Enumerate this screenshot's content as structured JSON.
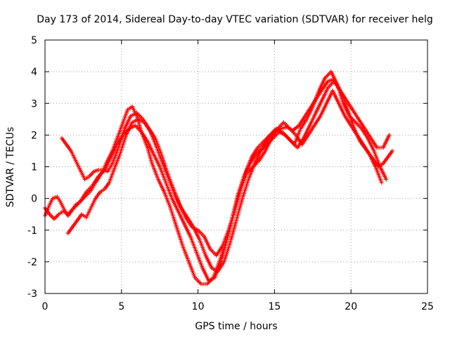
{
  "chart_data": {
    "type": "scatter",
    "title": "Day 173 of 2014, Sidereal Day-to-day VTEC variation (SDTVAR) for receiver helg",
    "xlabel": "GPS time / hours",
    "ylabel": "SDTVAR / TECUs",
    "xlim": [
      0,
      25
    ],
    "ylim": [
      -3,
      5
    ],
    "xticks": [
      "0",
      "5",
      "10",
      "15",
      "20",
      "25"
    ],
    "yticks": [
      "-3",
      "-2",
      "-1",
      "0",
      "1",
      "2",
      "3",
      "4",
      "5"
    ],
    "grid": true,
    "legend": "none",
    "marker": "plus",
    "colors": {
      "series": "#ff0000",
      "axis": "#000000",
      "grid": "#a0a0a0"
    },
    "series": [
      {
        "x": [
          0.0,
          0.3,
          0.5,
          0.8,
          1.0,
          1.2,
          1.5,
          1.8,
          2.0,
          2.3,
          2.6,
          3.0,
          3.3,
          3.7,
          4.0,
          4.4,
          4.8,
          5.1,
          5.4,
          5.7,
          6.0,
          6.3,
          6.7,
          7.0,
          7.4,
          7.8,
          8.2,
          8.6,
          9.0,
          9.4,
          9.8,
          10.2,
          10.6,
          11.0,
          11.4,
          11.8,
          12.2,
          12.6,
          13.0,
          13.4,
          13.8,
          14.2,
          14.6,
          15.0,
          15.4,
          15.8,
          16.2,
          16.6,
          17.0,
          17.4,
          17.8,
          18.2,
          18.5,
          18.8,
          19.1,
          19.4,
          19.7,
          20.0,
          20.3,
          20.6,
          20.9,
          21.2,
          21.5,
          21.8,
          22.1,
          22.4,
          22.7
        ],
        "y": [
          -0.55,
          -0.2,
          0.0,
          0.05,
          -0.1,
          -0.3,
          -0.55,
          -0.35,
          -0.2,
          -0.1,
          0.05,
          0.25,
          0.5,
          0.8,
          1.1,
          1.5,
          2.0,
          2.4,
          2.8,
          2.9,
          2.6,
          2.1,
          1.6,
          1.1,
          0.6,
          0.2,
          -0.3,
          -0.9,
          -1.5,
          -2.0,
          -2.5,
          -2.7,
          -2.7,
          -2.5,
          -2.0,
          -1.4,
          -0.7,
          0.1,
          0.7,
          1.1,
          1.4,
          1.6,
          1.9,
          2.1,
          2.2,
          2.25,
          2.15,
          2.3,
          2.6,
          2.9,
          3.2,
          3.5,
          3.7,
          3.75,
          3.6,
          3.3,
          2.9,
          2.5,
          2.1,
          1.8,
          1.6,
          1.4,
          1.2,
          1.0,
          1.1,
          1.3,
          1.5
        ]
      },
      {
        "x": [
          0.0,
          0.3,
          0.6,
          0.9,
          1.2,
          1.5,
          1.9,
          2.3,
          2.7,
          3.1,
          3.5,
          3.9,
          4.3,
          4.7,
          5.1,
          5.5,
          5.9,
          6.3,
          6.7,
          7.1,
          7.5,
          7.9,
          8.3,
          8.7,
          9.1,
          9.5,
          9.9,
          10.3,
          10.7,
          11.1,
          11.5,
          11.9,
          12.3,
          12.7,
          13.1,
          13.5,
          13.9,
          14.3,
          14.7,
          15.1,
          15.5,
          15.9,
          16.3,
          16.7,
          17.1,
          17.5,
          17.9,
          18.3,
          18.7,
          19.1,
          19.5,
          19.9,
          20.3,
          20.7,
          21.1,
          21.5,
          21.9,
          22.3
        ],
        "y": [
          -0.3,
          -0.5,
          -0.65,
          -0.5,
          -0.4,
          -0.5,
          -0.3,
          -0.1,
          0.2,
          0.4,
          0.7,
          0.9,
          1.3,
          1.7,
          2.0,
          2.2,
          2.3,
          2.1,
          1.8,
          1.4,
          1.0,
          0.5,
          0.0,
          -0.4,
          -0.8,
          -1.2,
          -1.7,
          -2.2,
          -2.6,
          -2.5,
          -2.0,
          -1.3,
          -0.5,
          0.2,
          0.8,
          1.3,
          1.6,
          1.8,
          2.0,
          2.2,
          2.1,
          1.9,
          1.7,
          2.2,
          2.5,
          2.9,
          3.4,
          3.8,
          4.0,
          3.6,
          3.0,
          2.6,
          2.4,
          2.2,
          1.9,
          1.5,
          1.0,
          0.6
        ]
      },
      {
        "x": [
          1.1,
          1.4,
          1.7,
          2.0,
          2.3,
          2.6,
          2.9,
          3.2,
          3.5,
          3.8,
          4.1,
          4.4,
          4.8,
          5.2,
          5.6,
          6.0,
          6.4,
          6.8,
          7.2,
          7.6,
          8.0,
          8.4,
          8.8,
          9.2,
          9.6,
          10.0,
          10.4,
          10.8,
          11.2,
          11.6,
          12.0,
          12.4,
          12.8,
          13.2,
          13.6,
          14.0,
          14.4,
          14.8,
          15.2,
          15.6,
          16.0,
          16.4,
          16.8,
          17.2,
          17.6,
          18.0,
          18.4,
          18.8,
          19.2,
          19.6,
          20.0,
          20.4,
          20.8,
          21.2,
          21.6,
          22.0
        ],
        "y": [
          1.9,
          1.7,
          1.5,
          1.2,
          0.9,
          0.6,
          0.7,
          0.85,
          0.9,
          0.9,
          0.85,
          1.1,
          1.6,
          2.2,
          2.6,
          2.7,
          2.5,
          2.2,
          1.9,
          1.4,
          0.8,
          0.3,
          -0.2,
          -0.6,
          -0.9,
          -1.0,
          -1.2,
          -1.6,
          -1.8,
          -1.5,
          -1.0,
          -0.4,
          0.3,
          0.8,
          1.0,
          1.2,
          1.5,
          1.9,
          2.2,
          2.4,
          2.2,
          2.0,
          1.7,
          2.0,
          2.3,
          2.6,
          3.0,
          3.4,
          3.0,
          2.6,
          2.3,
          2.0,
          1.7,
          1.4,
          1.0,
          0.5
        ]
      },
      {
        "x": [
          1.5,
          1.8,
          2.1,
          2.4,
          2.7,
          3.0,
          3.3,
          3.6,
          3.9,
          4.2,
          4.5,
          4.9,
          5.3,
          5.7,
          6.1,
          6.5,
          6.9,
          7.3,
          7.7,
          8.1,
          8.5,
          8.9,
          9.3,
          9.7,
          10.1,
          10.5,
          10.9,
          11.3,
          11.7,
          12.1,
          12.5,
          12.9,
          13.3,
          13.7,
          14.1,
          14.5,
          14.9,
          15.3,
          15.7,
          16.1,
          16.5,
          16.9,
          17.3,
          17.7,
          18.1,
          18.5,
          18.9,
          19.3,
          19.7,
          20.1,
          20.5,
          20.9,
          21.3,
          21.7,
          22.1,
          22.5
        ],
        "y": [
          -1.1,
          -0.9,
          -0.7,
          -0.5,
          -0.6,
          -0.3,
          0.0,
          0.2,
          0.3,
          0.5,
          0.9,
          1.4,
          2.0,
          2.4,
          2.5,
          2.4,
          2.1,
          1.6,
          1.1,
          0.6,
          0.1,
          -0.3,
          -0.6,
          -0.9,
          -1.3,
          -1.8,
          -2.2,
          -2.3,
          -2.0,
          -1.4,
          -0.7,
          0.0,
          0.6,
          1.1,
          1.5,
          1.7,
          1.9,
          2.1,
          2.0,
          1.8,
          1.6,
          1.9,
          2.3,
          2.7,
          3.1,
          3.5,
          3.7,
          3.4,
          3.1,
          2.8,
          2.5,
          2.2,
          1.9,
          1.6,
          1.6,
          2.0
        ]
      }
    ]
  }
}
